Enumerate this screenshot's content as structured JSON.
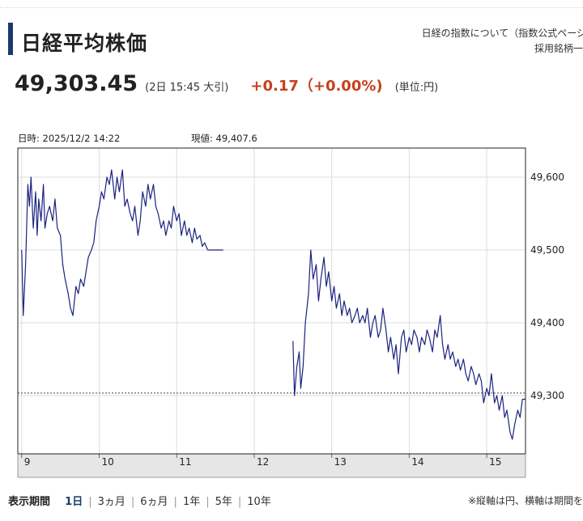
{
  "header": {
    "title": "日経平均株価",
    "link_about": "日経の指数について（指数公式ページ",
    "link_constituents": "採用銘柄一"
  },
  "quote": {
    "price": "49,303.45",
    "as_of": "(2日 15:45 大引)",
    "change": "+0.17（+0.00%)",
    "unit": "(単位:円)"
  },
  "readout": {
    "datetime": "日時: 2025/12/2  14:22",
    "value": "現値: 49,407.6"
  },
  "colors": {
    "line": "#1a237e",
    "change": "#c8401c",
    "title_bar": "#1b3a6b"
  },
  "chart_data": {
    "type": "line",
    "x_ticks": [
      9,
      10,
      11,
      12,
      13,
      14,
      15
    ],
    "x_tick_labels": [
      "9",
      "10",
      "11",
      "12",
      "13",
      "14",
      "15"
    ],
    "xlim": [
      8.95,
      15.5
    ],
    "y_ticks": [
      49300,
      49400,
      49500,
      49600
    ],
    "y_tick_labels": [
      "49,300",
      "49,400",
      "49,500",
      "49,600"
    ],
    "ylim": [
      49220,
      49640
    ],
    "reference_value": 49303.45,
    "grid": true,
    "series": [
      {
        "segment": "morning",
        "x": [
          9.0,
          9.02,
          9.05,
          9.08,
          9.1,
          9.12,
          9.15,
          9.18,
          9.2,
          9.22,
          9.25,
          9.28,
          9.3,
          9.33,
          9.36,
          9.4,
          9.43,
          9.46,
          9.5,
          9.53,
          9.56,
          9.6,
          9.63,
          9.66,
          9.7,
          9.73,
          9.76,
          9.8,
          9.83,
          9.86,
          9.9,
          9.93,
          9.96,
          10.0,
          10.03,
          10.06,
          10.1,
          10.13,
          10.16,
          10.2,
          10.23,
          10.26,
          10.3,
          10.33,
          10.36,
          10.4,
          10.43,
          10.46,
          10.5,
          10.53,
          10.56,
          10.6,
          10.63,
          10.66,
          10.7,
          10.73,
          10.76,
          10.8,
          10.83,
          10.86,
          10.9,
          10.93,
          10.96,
          11.0,
          11.03,
          11.06,
          11.1,
          11.13,
          11.16,
          11.2,
          11.23,
          11.26,
          11.3,
          11.33,
          11.36,
          11.4,
          11.43,
          11.46,
          11.5,
          11.53,
          11.56,
          11.6
        ],
        "y": [
          49500,
          49410,
          49480,
          49590,
          49560,
          49600,
          49530,
          49580,
          49520,
          49570,
          49540,
          49590,
          49530,
          49550,
          49560,
          49540,
          49570,
          49530,
          49520,
          49480,
          49460,
          49440,
          49420,
          49410,
          49450,
          49440,
          49460,
          49450,
          49470,
          49490,
          49500,
          49510,
          49540,
          49560,
          49580,
          49570,
          49600,
          49590,
          49610,
          49570,
          49600,
          49580,
          49610,
          49560,
          49570,
          49550,
          49540,
          49560,
          49520,
          49540,
          49580,
          49560,
          49590,
          49570,
          49590,
          49560,
          49550,
          49530,
          49540,
          49520,
          49540,
          49530,
          49560,
          49540,
          49550,
          49520,
          49540,
          49520,
          49530,
          49510,
          49530,
          49515,
          49520,
          49505,
          49510,
          49500,
          49500,
          49500,
          49500,
          49500,
          49500,
          49500
        ]
      },
      {
        "segment": "afternoon",
        "x": [
          12.5,
          12.52,
          12.55,
          12.58,
          12.6,
          12.63,
          12.66,
          12.7,
          12.73,
          12.76,
          12.8,
          12.83,
          12.86,
          12.9,
          12.93,
          12.96,
          13.0,
          13.03,
          13.06,
          13.1,
          13.13,
          13.16,
          13.2,
          13.23,
          13.26,
          13.3,
          13.33,
          13.36,
          13.4,
          13.43,
          13.46,
          13.5,
          13.53,
          13.56,
          13.6,
          13.63,
          13.66,
          13.7,
          13.73,
          13.76,
          13.8,
          13.83,
          13.86,
          13.9,
          13.93,
          13.96,
          14.0,
          14.03,
          14.06,
          14.1,
          14.13,
          14.16,
          14.2,
          14.23,
          14.26,
          14.3,
          14.33,
          14.36,
          14.4,
          14.43,
          14.46,
          14.5,
          14.53,
          14.56,
          14.6,
          14.63,
          14.66,
          14.7,
          14.73,
          14.76,
          14.8,
          14.83,
          14.86,
          14.9,
          14.93,
          14.96,
          15.0,
          15.03,
          15.06,
          15.1,
          15.13,
          15.16,
          15.2,
          15.23,
          15.26,
          15.3,
          15.33,
          15.36,
          15.4,
          15.43,
          15.46,
          15.5
        ],
        "y": [
          49375,
          49300,
          49340,
          49360,
          49310,
          49340,
          49400,
          49440,
          49500,
          49460,
          49480,
          49430,
          49460,
          49490,
          49450,
          49470,
          49430,
          49450,
          49420,
          49440,
          49410,
          49430,
          49410,
          49420,
          49400,
          49410,
          49420,
          49400,
          49410,
          49400,
          49420,
          49380,
          49400,
          49410,
          49380,
          49390,
          49420,
          49390,
          49360,
          49380,
          49350,
          49370,
          49330,
          49380,
          49390,
          49360,
          49380,
          49370,
          49390,
          49380,
          49360,
          49380,
          49370,
          49390,
          49380,
          49360,
          49390,
          49380,
          49410,
          49370,
          49350,
          49370,
          49350,
          49360,
          49340,
          49350,
          49335,
          49350,
          49330,
          49320,
          49340,
          49330,
          49315,
          49330,
          49320,
          49290,
          49310,
          49300,
          49330,
          49290,
          49300,
          49280,
          49300,
          49270,
          49280,
          49250,
          49240,
          49260,
          49280,
          49270,
          49295,
          49295
        ]
      }
    ]
  },
  "footer": {
    "period_label": "表示期間",
    "periods": [
      "1日",
      "3ヵ月",
      "6ヵ月",
      "1年",
      "5年",
      "10年"
    ],
    "active_period": 0,
    "note": "※縦軸は円、横軸は期間を"
  }
}
